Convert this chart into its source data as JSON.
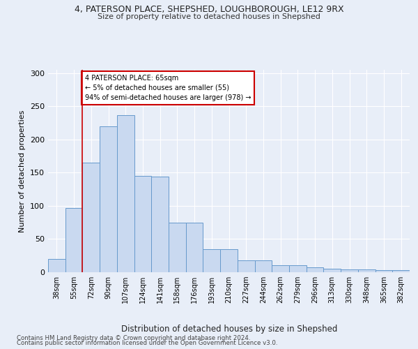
{
  "title1": "4, PATERSON PLACE, SHEPSHED, LOUGHBOROUGH, LE12 9RX",
  "title2": "Size of property relative to detached houses in Shepshed",
  "xlabel": "Distribution of detached houses by size in Shepshed",
  "ylabel": "Number of detached properties",
  "categories": [
    "38sqm",
    "55sqm",
    "72sqm",
    "90sqm",
    "107sqm",
    "124sqm",
    "141sqm",
    "158sqm",
    "176sqm",
    "193sqm",
    "210sqm",
    "227sqm",
    "244sqm",
    "262sqm",
    "279sqm",
    "296sqm",
    "313sqm",
    "330sqm",
    "348sqm",
    "365sqm",
    "382sqm"
  ],
  "values": [
    20,
    97,
    165,
    220,
    237,
    145,
    144,
    75,
    75,
    35,
    35,
    18,
    18,
    10,
    10,
    7,
    5,
    4,
    4,
    3,
    3
  ],
  "bar_color": "#c9d9f0",
  "bar_edge_color": "#6699cc",
  "vline_x": 1.5,
  "vline_color": "#cc0000",
  "annotation_text": "4 PATERSON PLACE: 65sqm\n← 5% of detached houses are smaller (55)\n94% of semi-detached houses are larger (978) →",
  "annotation_box_color": "#ffffff",
  "annotation_box_edge_color": "#cc0000",
  "ylim": [
    0,
    305
  ],
  "yticks": [
    0,
    50,
    100,
    150,
    200,
    250,
    300
  ],
  "footer1": "Contains HM Land Registry data © Crown copyright and database right 2024.",
  "footer2": "Contains public sector information licensed under the Open Government Licence v3.0.",
  "bg_color": "#e8eef8",
  "plot_bg_color": "#e8eef8"
}
